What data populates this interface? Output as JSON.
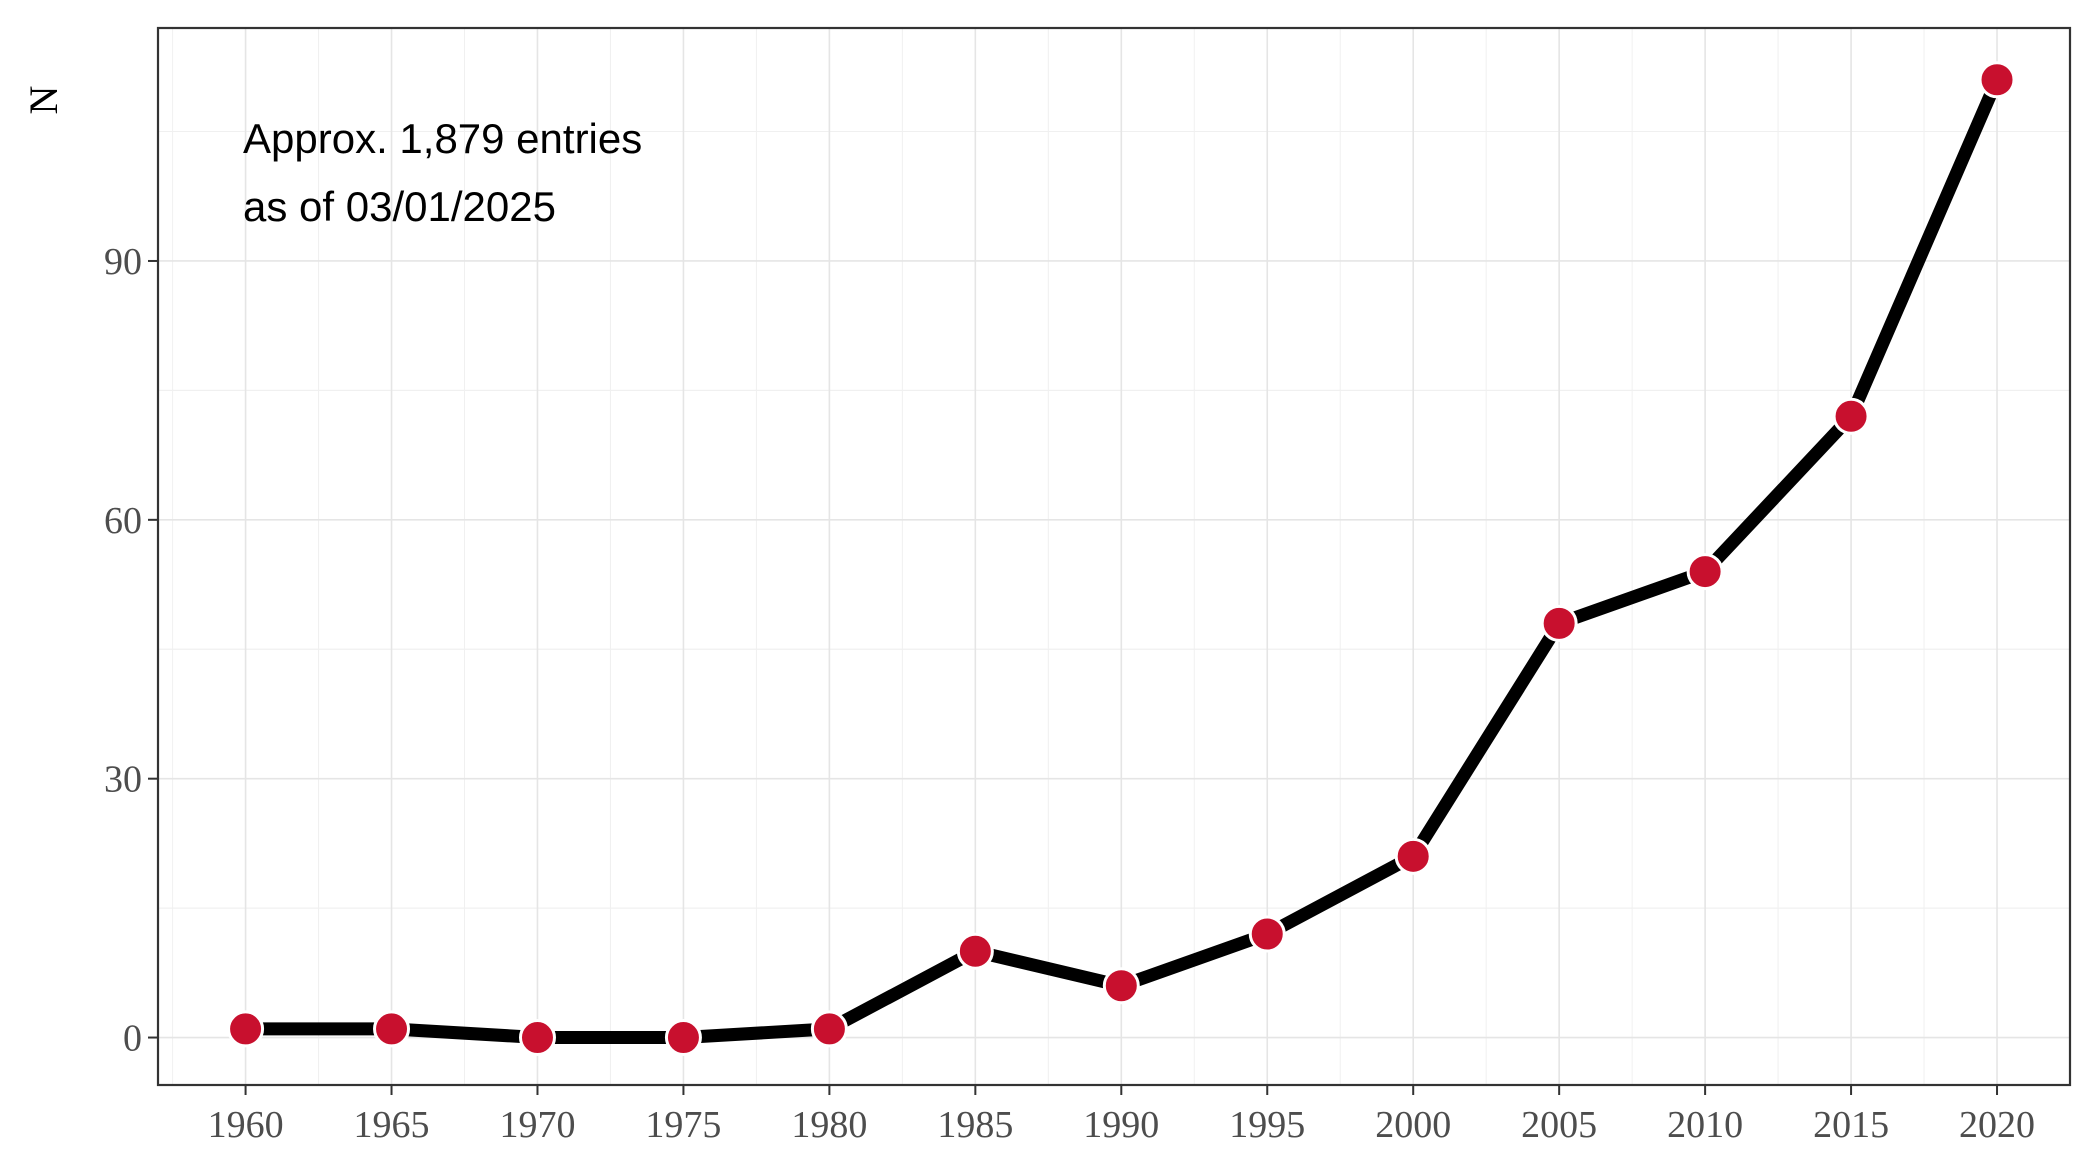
{
  "chart_data": {
    "type": "line",
    "title": "",
    "xlabel": "",
    "ylabel": "N",
    "x": [
      1960,
      1965,
      1970,
      1975,
      1980,
      1985,
      1990,
      1995,
      2000,
      2005,
      2010,
      2015,
      2020
    ],
    "series": [
      {
        "values": [
          1,
          1,
          0,
          0,
          1,
          10,
          6,
          12,
          21,
          48,
          54,
          72,
          111
        ]
      }
    ],
    "xticks": [
      "1960",
      "1965",
      "1970",
      "1975",
      "1980",
      "1985",
      "1990",
      "1995",
      "2000",
      "2005",
      "2010",
      "2015",
      "2020"
    ],
    "yticks": [
      "0",
      "30",
      "60",
      "90"
    ],
    "xlim": [
      1957,
      2022.5
    ],
    "ylim": [
      -5.5,
      117
    ],
    "grid": true,
    "annotation": {
      "line1": "Approx. 1,879 entries",
      "line2": "as of 03/01/2025"
    },
    "colors": {
      "line": "#000000",
      "point_fill": "#c8102e",
      "point_stroke": "#ffffff",
      "panel_border": "#333333"
    }
  }
}
